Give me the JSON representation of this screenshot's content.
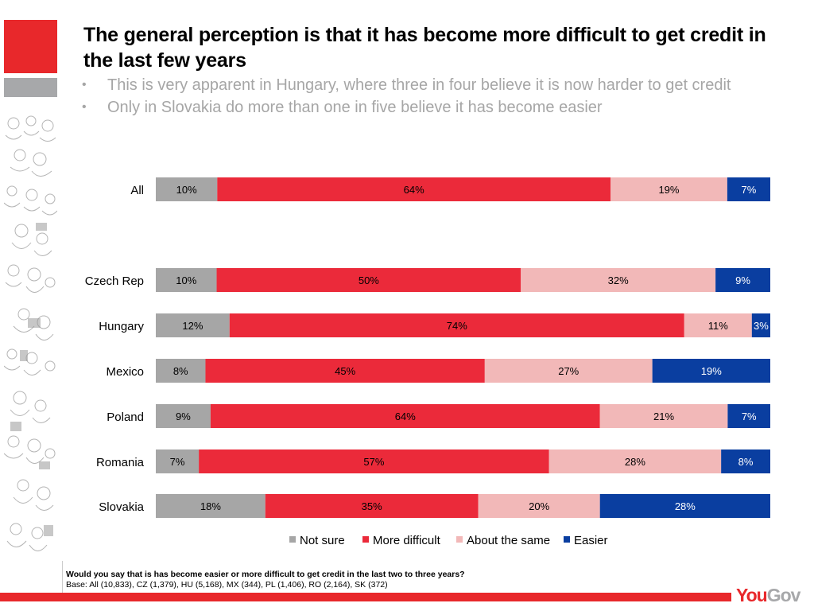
{
  "header": {
    "title": "The general perception is that it has become more difficult to get credit in the last few years",
    "bullets": [
      "This is very apparent in Hungary, where three in four believe it is now harder to get credit",
      "Only in Slovakia do more than one in five believe it has become easier"
    ]
  },
  "colors": {
    "brand_red": "#e8282b",
    "brand_grey": "#a7a8aa"
  },
  "chart_data": {
    "type": "bar",
    "orientation": "horizontal",
    "stacked": true,
    "normalized": "100%",
    "categories": [
      "All",
      "Czech Rep",
      "Hungary",
      "Mexico",
      "Poland",
      "Romania",
      "Slovakia"
    ],
    "series": [
      {
        "name": "Not sure",
        "color": "#a6a6a6",
        "label_color": "#000000",
        "values": [
          10,
          10,
          12,
          8,
          9,
          7,
          18
        ]
      },
      {
        "name": "More difficult",
        "color": "#eb2a3a",
        "label_color": "#000000",
        "values": [
          64,
          50,
          74,
          45,
          64,
          57,
          35
        ]
      },
      {
        "name": "About the same",
        "color": "#f2b8b8",
        "label_color": "#000000",
        "values": [
          19,
          32,
          11,
          27,
          21,
          28,
          20
        ]
      },
      {
        "name": "Easier",
        "color": "#0a3ea0",
        "label_color": "#ffffff",
        "values": [
          7,
          9,
          3,
          19,
          7,
          8,
          28
        ]
      }
    ],
    "value_suffix": "%",
    "legend": {
      "position": "bottom"
    },
    "grid": false,
    "title": "",
    "xlabel": "",
    "ylabel": ""
  },
  "footnote": {
    "question": "Would you say that is has become easier or more difficult to get credit in the last two to three years?",
    "base": "Base: All (10,833), CZ (1,379), HU (5,168), MX (344), PL (1,406), RO (2,164), SK (372)"
  },
  "logo": {
    "part1": "You",
    "part2": "Gov"
  }
}
